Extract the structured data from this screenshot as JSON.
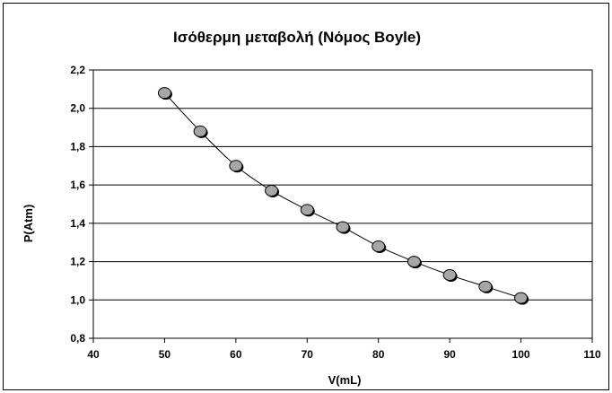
{
  "chart_data": {
    "type": "scatter",
    "title": "Ισόθερμη  μεταβολή (Νόμος Boyle)",
    "xlabel": "V(mL)",
    "ylabel": "P(Atm)",
    "xlim": [
      40,
      110
    ],
    "ylim": [
      0.8,
      2.2
    ],
    "x_ticks": [
      "40",
      "50",
      "60",
      "70",
      "80",
      "90",
      "100",
      "110"
    ],
    "y_ticks": [
      "0,8",
      "1,0",
      "1,2",
      "1,4",
      "1,6",
      "1,8",
      "2,0",
      "2,2"
    ],
    "grid": "horizontal",
    "legend": "none",
    "trendline": true,
    "series": [
      {
        "x": [
          50,
          55,
          60,
          65,
          70,
          75,
          80,
          85,
          90,
          95,
          100
        ],
        "y": [
          2.08,
          1.88,
          1.7,
          1.57,
          1.47,
          1.38,
          1.28,
          1.2,
          1.13,
          1.07,
          1.01
        ]
      }
    ],
    "colors": {
      "marker": "#a6a6a6",
      "marker_stroke": "#000000",
      "line": "#000000",
      "grid": "#000000"
    }
  }
}
